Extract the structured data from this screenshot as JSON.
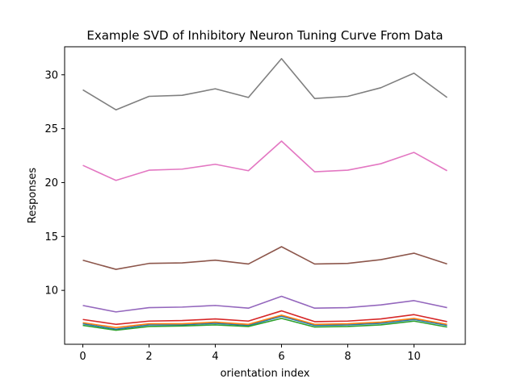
{
  "chart_data": {
    "type": "line",
    "title": "Example SVD of Inhibitory Neuron Tuning Curve From Data",
    "xlabel": "orientation index",
    "ylabel": "Responses",
    "xlim": [
      -0.55,
      11.55
    ],
    "ylim": [
      5.0,
      32.6
    ],
    "xticks": [
      0,
      2,
      4,
      6,
      8,
      10
    ],
    "yticks": [
      10,
      15,
      20,
      25,
      30
    ],
    "grid": false,
    "legend": "none",
    "x": [
      0,
      1,
      2,
      3,
      4,
      5,
      6,
      7,
      8,
      9,
      10,
      11
    ],
    "series": [
      {
        "color": "#1f77b4",
        "values": [
          6.9,
          6.4,
          6.8,
          6.8,
          6.95,
          6.75,
          7.6,
          6.75,
          6.8,
          6.95,
          7.3,
          6.75
        ]
      },
      {
        "color": "#ff7f0e",
        "values": [
          7.0,
          6.55,
          6.9,
          6.9,
          7.05,
          6.85,
          7.7,
          6.85,
          6.9,
          7.05,
          7.4,
          6.85
        ]
      },
      {
        "color": "#2ca02c",
        "values": [
          6.75,
          6.3,
          6.65,
          6.7,
          6.8,
          6.65,
          7.4,
          6.6,
          6.65,
          6.8,
          7.15,
          6.6
        ]
      },
      {
        "color": "#d62728",
        "values": [
          7.3,
          6.85,
          7.15,
          7.2,
          7.35,
          7.15,
          8.1,
          7.1,
          7.15,
          7.35,
          7.75,
          7.1
        ]
      },
      {
        "color": "#9467bd",
        "values": [
          8.6,
          8.0,
          8.4,
          8.45,
          8.6,
          8.35,
          9.45,
          8.35,
          8.4,
          8.65,
          9.05,
          8.4
        ]
      },
      {
        "color": "#8c564b",
        "values": [
          12.8,
          11.95,
          12.5,
          12.55,
          12.8,
          12.45,
          14.05,
          12.45,
          12.5,
          12.85,
          13.45,
          12.45
        ]
      },
      {
        "color": "#e377c2",
        "values": [
          21.6,
          20.2,
          21.15,
          21.25,
          21.7,
          21.1,
          23.85,
          21.0,
          21.15,
          21.75,
          22.8,
          21.1
        ]
      },
      {
        "color": "#7f7f7f",
        "values": [
          28.6,
          26.75,
          28.0,
          28.1,
          28.7,
          27.9,
          31.5,
          27.8,
          28.0,
          28.8,
          30.15,
          27.9
        ]
      }
    ]
  }
}
